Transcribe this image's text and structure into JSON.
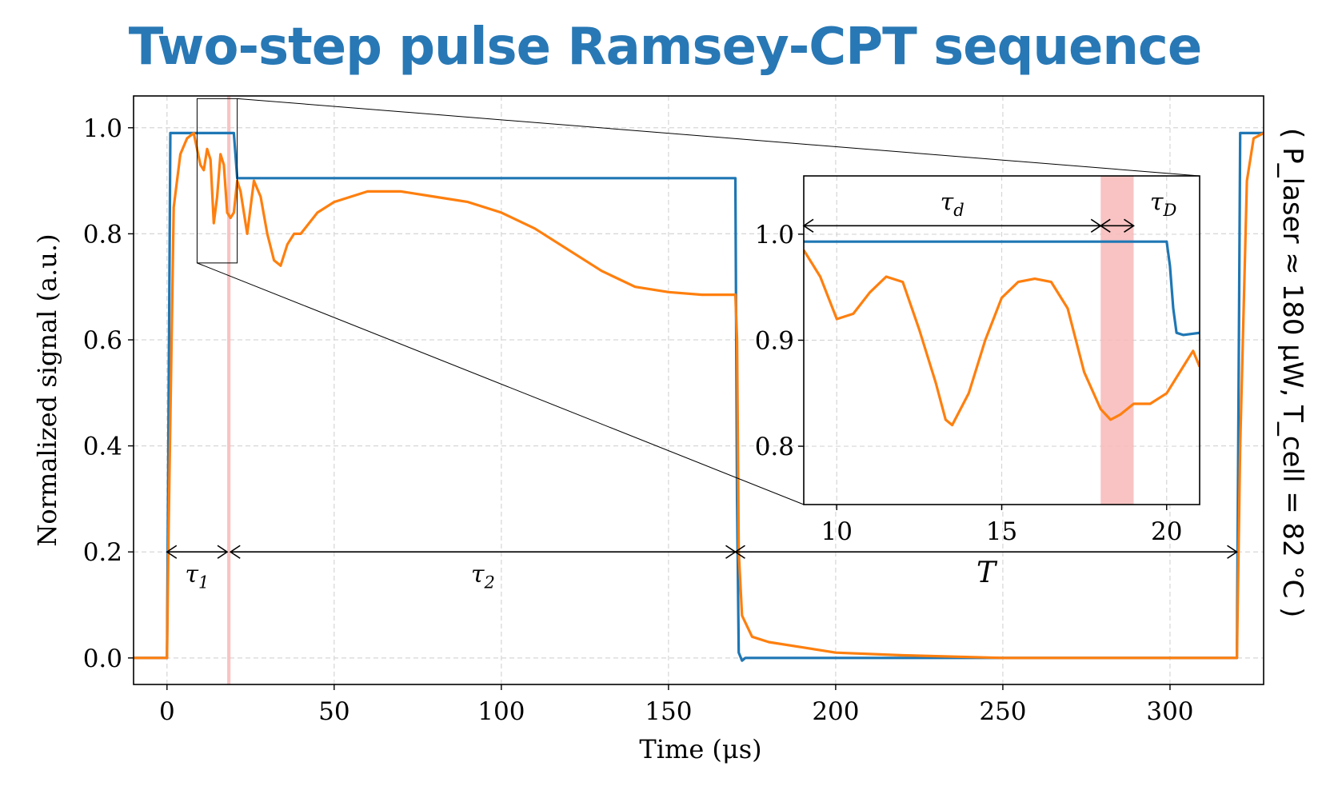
{
  "title": "Two-step pulse Ramsey-CPT sequence",
  "colors": {
    "title": "#2878b5",
    "series_blue": "#1f77b4",
    "series_orange": "#ff7f0e",
    "shade": "#f8b8b8"
  },
  "side_note": "( P_laser ≈ 180 μW, T_cell = 82 °C )",
  "chart_data": [
    {
      "type": "line",
      "xlabel": "Time (μs)",
      "ylabel": "Normalized signal (a.u.)",
      "xlim": [
        -10,
        328
      ],
      "ylim": [
        -0.05,
        1.06
      ],
      "xticks": [
        "0",
        "50",
        "100",
        "150",
        "200",
        "250",
        "300"
      ],
      "yticks": [
        "0.0",
        "0.2",
        "0.4",
        "0.6",
        "0.8",
        "1.0"
      ],
      "grid": true,
      "shaded_region": [
        18,
        19
      ],
      "series": [
        {
          "color": "#1f77b4",
          "x": [
            -10,
            0,
            1,
            10,
            20,
            21,
            50,
            100,
            150,
            170,
            170.5,
            171,
            172,
            173,
            175,
            200,
            250,
            320,
            321,
            328
          ],
          "y": [
            0.0,
            0.0,
            0.99,
            0.99,
            0.99,
            0.905,
            0.905,
            0.905,
            0.905,
            0.905,
            0.3,
            0.01,
            -0.005,
            0.0,
            0.0,
            0.0,
            0.0,
            0.0,
            0.99,
            0.99
          ]
        },
        {
          "color": "#ff7f0e",
          "x": [
            -10,
            0,
            0.5,
            2,
            4,
            6,
            8,
            10,
            11,
            12,
            13,
            14,
            15,
            16,
            17,
            18,
            19,
            20,
            21,
            22,
            24,
            26,
            28,
            30,
            32,
            34,
            36,
            38,
            40,
            45,
            50,
            60,
            70,
            80,
            90,
            100,
            110,
            120,
            130,
            140,
            150,
            160,
            170,
            170.5,
            171,
            172,
            175,
            180,
            190,
            200,
            220,
            250,
            280,
            300,
            320,
            321,
            323,
            325,
            328
          ],
          "y": [
            0.0,
            0.0,
            0.25,
            0.85,
            0.95,
            0.98,
            0.99,
            0.93,
            0.92,
            0.96,
            0.94,
            0.82,
            0.87,
            0.95,
            0.93,
            0.84,
            0.83,
            0.84,
            0.9,
            0.88,
            0.8,
            0.9,
            0.87,
            0.8,
            0.75,
            0.74,
            0.78,
            0.8,
            0.8,
            0.84,
            0.86,
            0.88,
            0.88,
            0.87,
            0.86,
            0.84,
            0.81,
            0.77,
            0.73,
            0.7,
            0.69,
            0.685,
            0.685,
            0.6,
            0.2,
            0.08,
            0.04,
            0.03,
            0.02,
            0.01,
            0.005,
            0.0,
            0.0,
            0.0,
            0.0,
            0.4,
            0.9,
            0.98,
            0.99
          ]
        }
      ],
      "annotations": [
        {
          "text": "τ",
          "sub": "1",
          "x_from": 0,
          "x_to": 18,
          "y": 0.2
        },
        {
          "text": "τ",
          "sub": "2",
          "x_from": 19,
          "x_to": 170,
          "y": 0.2
        },
        {
          "text": "T",
          "sub": "",
          "x_from": 170,
          "x_to": 320,
          "y": 0.2
        }
      ]
    },
    {
      "type": "line",
      "role": "inset",
      "xlim": [
        9,
        21
      ],
      "ylim": [
        0.745,
        1.055
      ],
      "xticks": [
        "10",
        "15",
        "20"
      ],
      "yticks": [
        "0.8",
        "0.9",
        "1.0"
      ],
      "grid": true,
      "shaded_region": [
        18,
        19
      ],
      "series": [
        {
          "color": "#1f77b4",
          "x": [
            9,
            10,
            12,
            14,
            16,
            18,
            19,
            20,
            20.1,
            20.2,
            20.3,
            20.5,
            21
          ],
          "y": [
            0.993,
            0.993,
            0.993,
            0.993,
            0.993,
            0.993,
            0.993,
            0.993,
            0.97,
            0.93,
            0.907,
            0.905,
            0.907
          ]
        },
        {
          "color": "#ff7f0e",
          "x": [
            9,
            9.5,
            10,
            10.5,
            11,
            11.5,
            12,
            12.5,
            13,
            13.3,
            13.5,
            14,
            14.5,
            15,
            15.5,
            16,
            16.5,
            17,
            17.5,
            18,
            18.3,
            18.6,
            19,
            19.5,
            20,
            20.5,
            20.8,
            21
          ],
          "y": [
            0.985,
            0.96,
            0.92,
            0.925,
            0.945,
            0.96,
            0.955,
            0.91,
            0.86,
            0.825,
            0.82,
            0.85,
            0.9,
            0.94,
            0.955,
            0.958,
            0.955,
            0.93,
            0.87,
            0.835,
            0.825,
            0.83,
            0.84,
            0.84,
            0.85,
            0.875,
            0.89,
            0.875
          ]
        }
      ],
      "annotations": [
        {
          "text": "τ",
          "sub": "d",
          "x_from": 9,
          "x_to": 18,
          "y": 1.008
        },
        {
          "text": "τ",
          "sub": "D",
          "x_from": 18,
          "x_to": 19,
          "y": 1.008
        }
      ]
    }
  ]
}
